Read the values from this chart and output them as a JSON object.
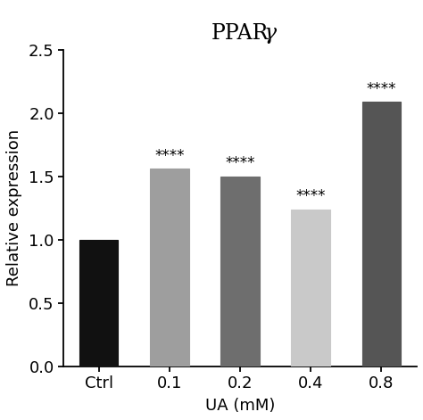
{
  "title_normal": "PPAR",
  "title_italic": "γ",
  "xlabel": "UA (mM)",
  "ylabel": "Relative expression",
  "categories": [
    "Ctrl",
    "0.1",
    "0.2",
    "0.4",
    "0.8"
  ],
  "values": [
    1.0,
    1.56,
    1.5,
    1.24,
    2.09
  ],
  "bar_colors": [
    "#111111",
    "#9e9e9e",
    "#6e6e6e",
    "#c9c9c9",
    "#555555"
  ],
  "significance": [
    null,
    "****",
    "****",
    "****",
    "****"
  ],
  "ylim": [
    0.0,
    2.5
  ],
  "yticks": [
    0.0,
    0.5,
    1.0,
    1.5,
    2.0,
    2.5
  ],
  "bar_width": 0.55,
  "title_fontsize": 17,
  "axis_label_fontsize": 13,
  "tick_fontsize": 13,
  "star_fontsize": 12,
  "background_color": "#ffffff"
}
